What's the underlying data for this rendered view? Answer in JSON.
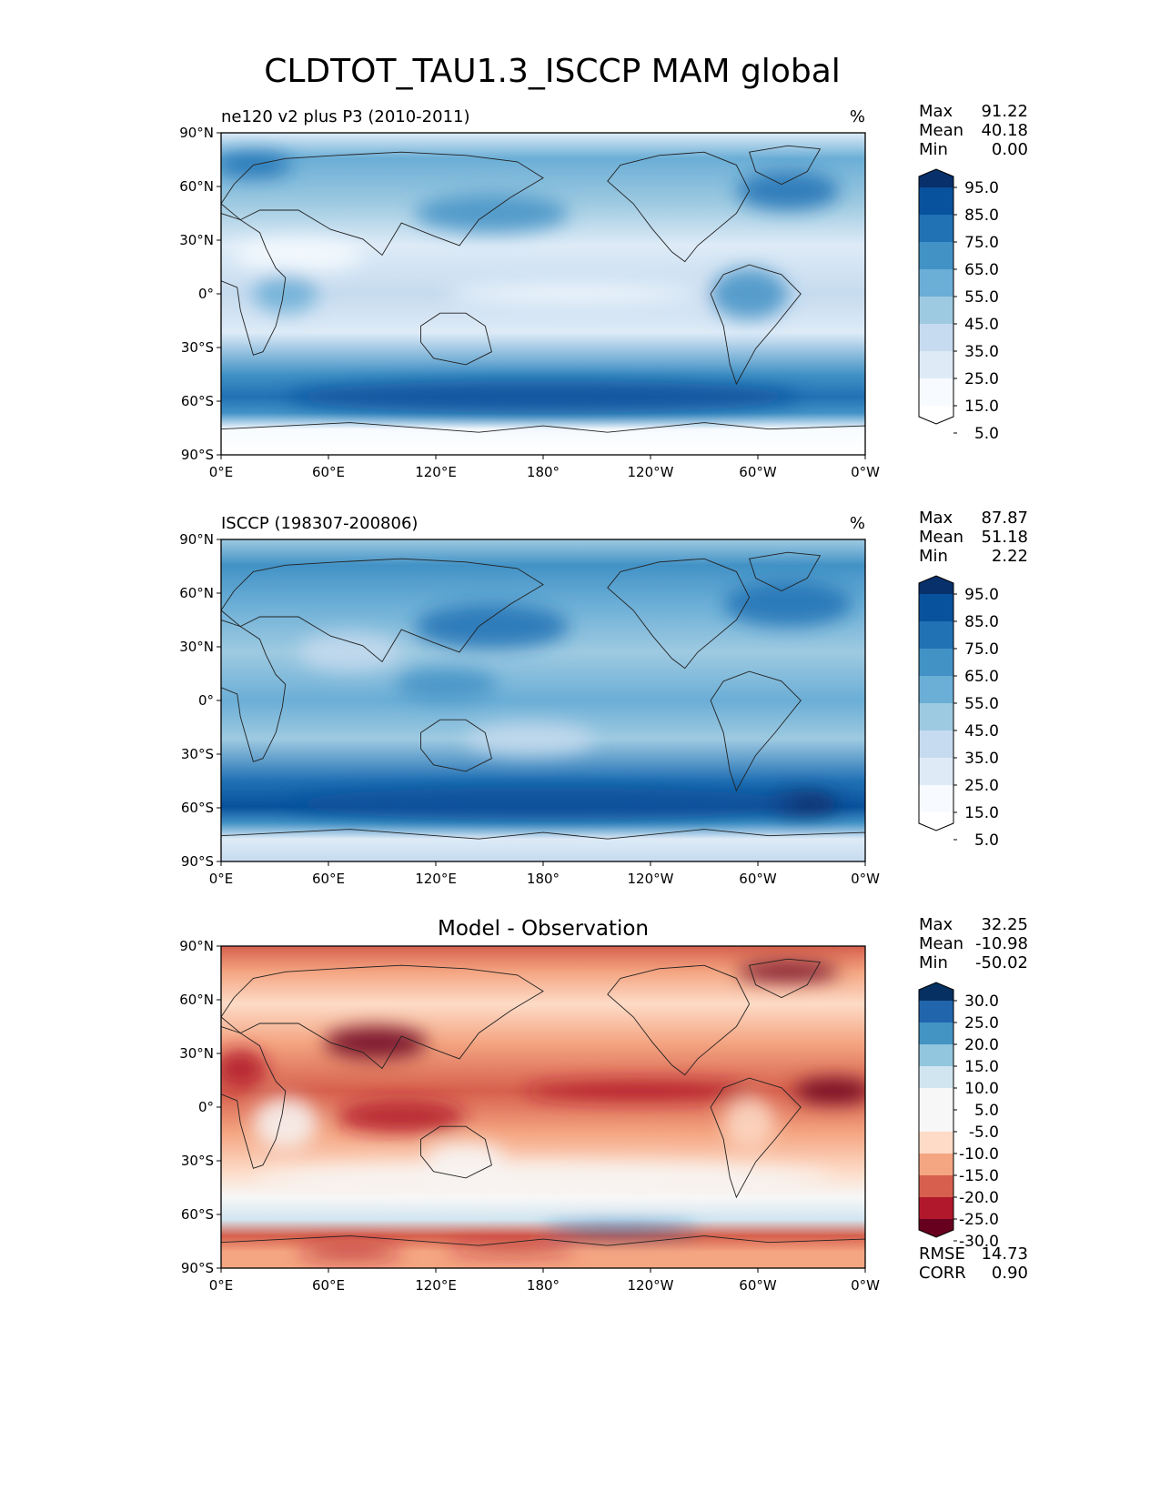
{
  "chart_data": {
    "type": "map",
    "title": "CLDTOT_TAU1.3_ISCCP MAM global",
    "lat_ticks": [
      "90°N",
      "60°N",
      "30°N",
      "0°",
      "30°S",
      "60°S",
      "90°S"
    ],
    "lon_ticks": [
      "0°E",
      "60°E",
      "120°E",
      "180°",
      "120°W",
      "60°W",
      "0°W"
    ],
    "panels": [
      {
        "name": "model",
        "title": "ne120 v2 plus P3 (2010-2011)",
        "units": "%",
        "stats": [
          {
            "label": "Max",
            "value": "91.22"
          },
          {
            "label": "Mean",
            "value": "40.18"
          },
          {
            "label": "Min",
            "value": "0.00"
          }
        ],
        "colorbar": {
          "levels": [
            "95.0",
            "85.0",
            "75.0",
            "65.0",
            "55.0",
            "45.0",
            "35.0",
            "25.0",
            "15.0",
            "5.0"
          ],
          "colors": [
            "#08306b",
            "#08519c",
            "#2171b5",
            "#4292c6",
            "#6baed6",
            "#9ecae1",
            "#c6dbef",
            "#deebf7",
            "#f7fbff",
            "#ffffff"
          ]
        }
      },
      {
        "name": "obs",
        "title": "ISCCP (198307-200806)",
        "units": "%",
        "stats": [
          {
            "label": "Max",
            "value": "87.87"
          },
          {
            "label": "Mean",
            "value": "51.18"
          },
          {
            "label": "Min",
            "value": "2.22"
          }
        ],
        "colorbar": {
          "levels": [
            "95.0",
            "85.0",
            "75.0",
            "65.0",
            "55.0",
            "45.0",
            "35.0",
            "25.0",
            "15.0",
            "5.0"
          ],
          "colors": [
            "#08306b",
            "#08519c",
            "#2171b5",
            "#4292c6",
            "#6baed6",
            "#9ecae1",
            "#c6dbef",
            "#deebf7",
            "#f7fbff",
            "#ffffff"
          ]
        }
      },
      {
        "name": "diff",
        "title": "Model - Observation",
        "units": "",
        "stats": [
          {
            "label": "Max",
            "value": "32.25"
          },
          {
            "label": "Mean",
            "value": "-10.98"
          },
          {
            "label": "Min",
            "value": "-50.02"
          }
        ],
        "extra_stats": [
          {
            "label": "RMSE",
            "value": "14.73"
          },
          {
            "label": "CORR",
            "value": "0.90"
          }
        ],
        "colorbar": {
          "levels": [
            "30.0",
            "25.0",
            "20.0",
            "15.0",
            "10.0",
            "5.0",
            "-5.0",
            "-10.0",
            "-15.0",
            "-20.0",
            "-25.0",
            "-30.0"
          ],
          "colors": [
            "#053061",
            "#2166ac",
            "#4393c3",
            "#92c5de",
            "#d1e5f0",
            "#f7f7f7",
            "#f7f7f7",
            "#fddbc7",
            "#f4a582",
            "#d6604d",
            "#b2182b",
            "#67001f"
          ]
        }
      }
    ]
  }
}
